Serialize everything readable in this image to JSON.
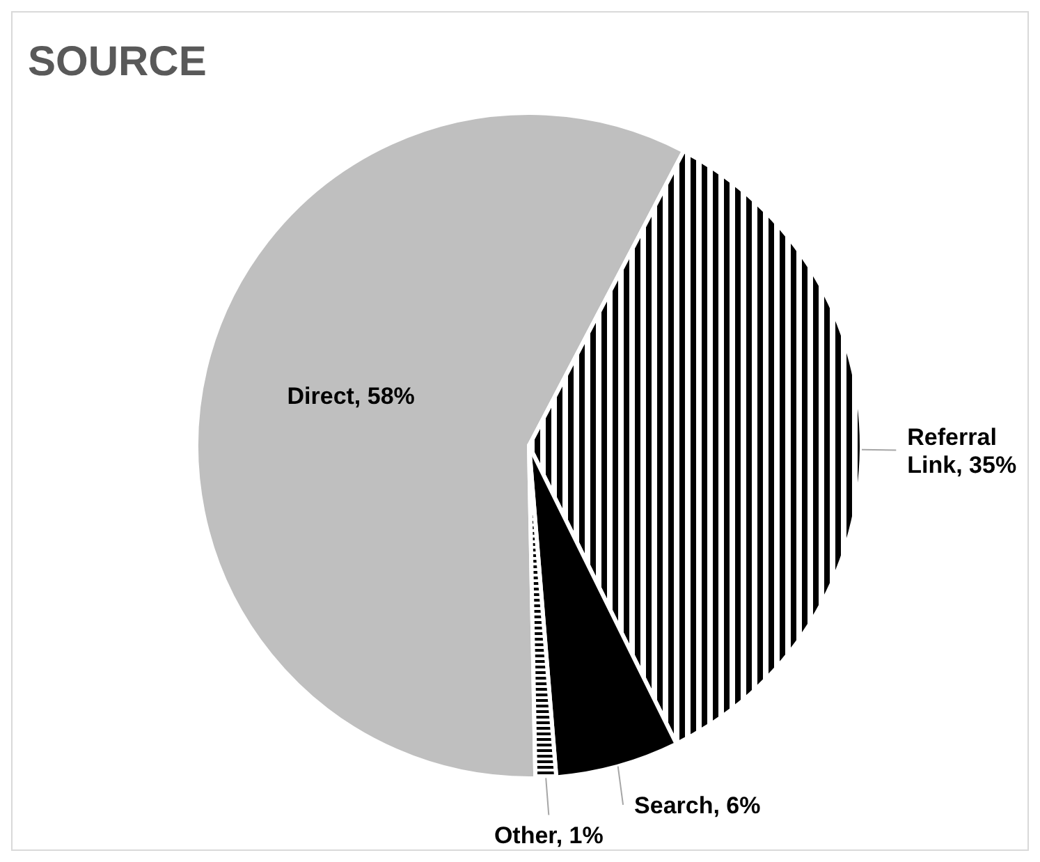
{
  "chart_data": {
    "type": "pie",
    "title": "SOURCE",
    "categories": [
      "Direct",
      "Referral Link",
      "Search",
      "Other"
    ],
    "values": [
      58,
      35,
      6,
      1
    ],
    "value_labels": [
      "58%",
      "35%",
      "6%",
      "1%"
    ],
    "colors": [
      "#bfbfbf",
      "#ffffff",
      "#000000",
      "#ffffff"
    ]
  }
}
